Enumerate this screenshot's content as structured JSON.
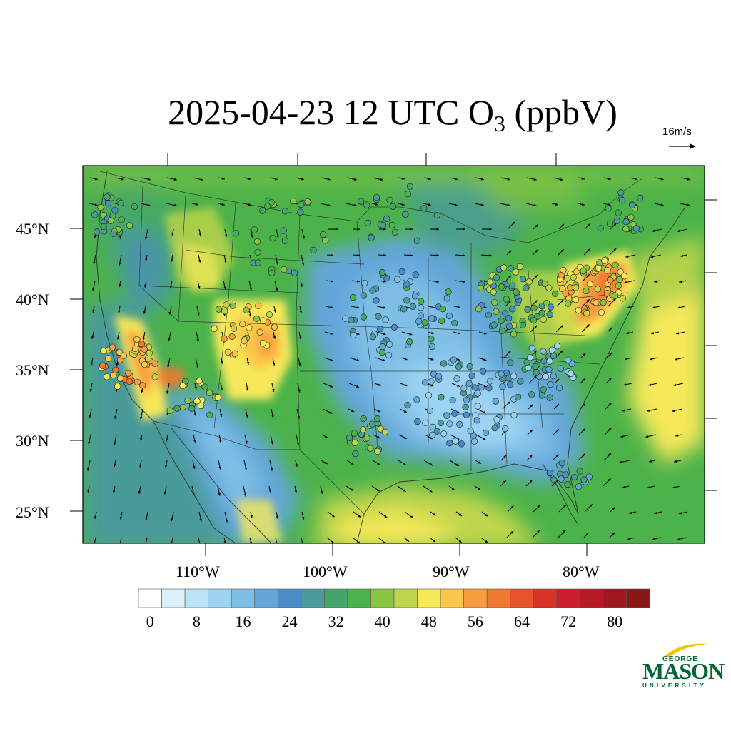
{
  "title": {
    "main": "2025-04-23 12 UTC O",
    "subscript": "3",
    "units": " (ppbV)"
  },
  "vector_reference": {
    "label": "16m/s"
  },
  "map": {
    "type": "contour-map",
    "variable": "O3 (ppbV)",
    "projection": "lambert",
    "lat_labels": [
      "45°N",
      "40°N",
      "35°N",
      "30°N",
      "25°N"
    ],
    "lon_labels": [
      "110°W",
      "100°W",
      "90°W",
      "80°W"
    ],
    "overlays": [
      "wind vectors",
      "monitor site circles",
      "state boundaries",
      "coastlines"
    ]
  },
  "colorbar": {
    "levels": [
      0,
      4,
      8,
      12,
      16,
      20,
      24,
      28,
      32,
      36,
      40,
      44,
      48,
      52,
      56,
      60,
      64,
      68,
      72,
      76,
      80,
      84
    ],
    "tick_labels": [
      "0",
      "8",
      "16",
      "24",
      "32",
      "40",
      "48",
      "56",
      "64",
      "72",
      "80"
    ],
    "colors": [
      "#ffffff",
      "#dcf0fa",
      "#bde3f6",
      "#9dd3f2",
      "#7fbfe6",
      "#63a6da",
      "#4a8dc8",
      "#4a9b9a",
      "#44a66b",
      "#4cb34a",
      "#88c542",
      "#bfd54b",
      "#f7e85a",
      "#fbc64c",
      "#f89d3d",
      "#f07930",
      "#e55328",
      "#d93226",
      "#cf1e2b",
      "#b81a25",
      "#9f1720",
      "#8a1616"
    ]
  },
  "logo": {
    "line1": "GEORGE",
    "line2": "MASON",
    "line3": "UNIVERSITY"
  }
}
